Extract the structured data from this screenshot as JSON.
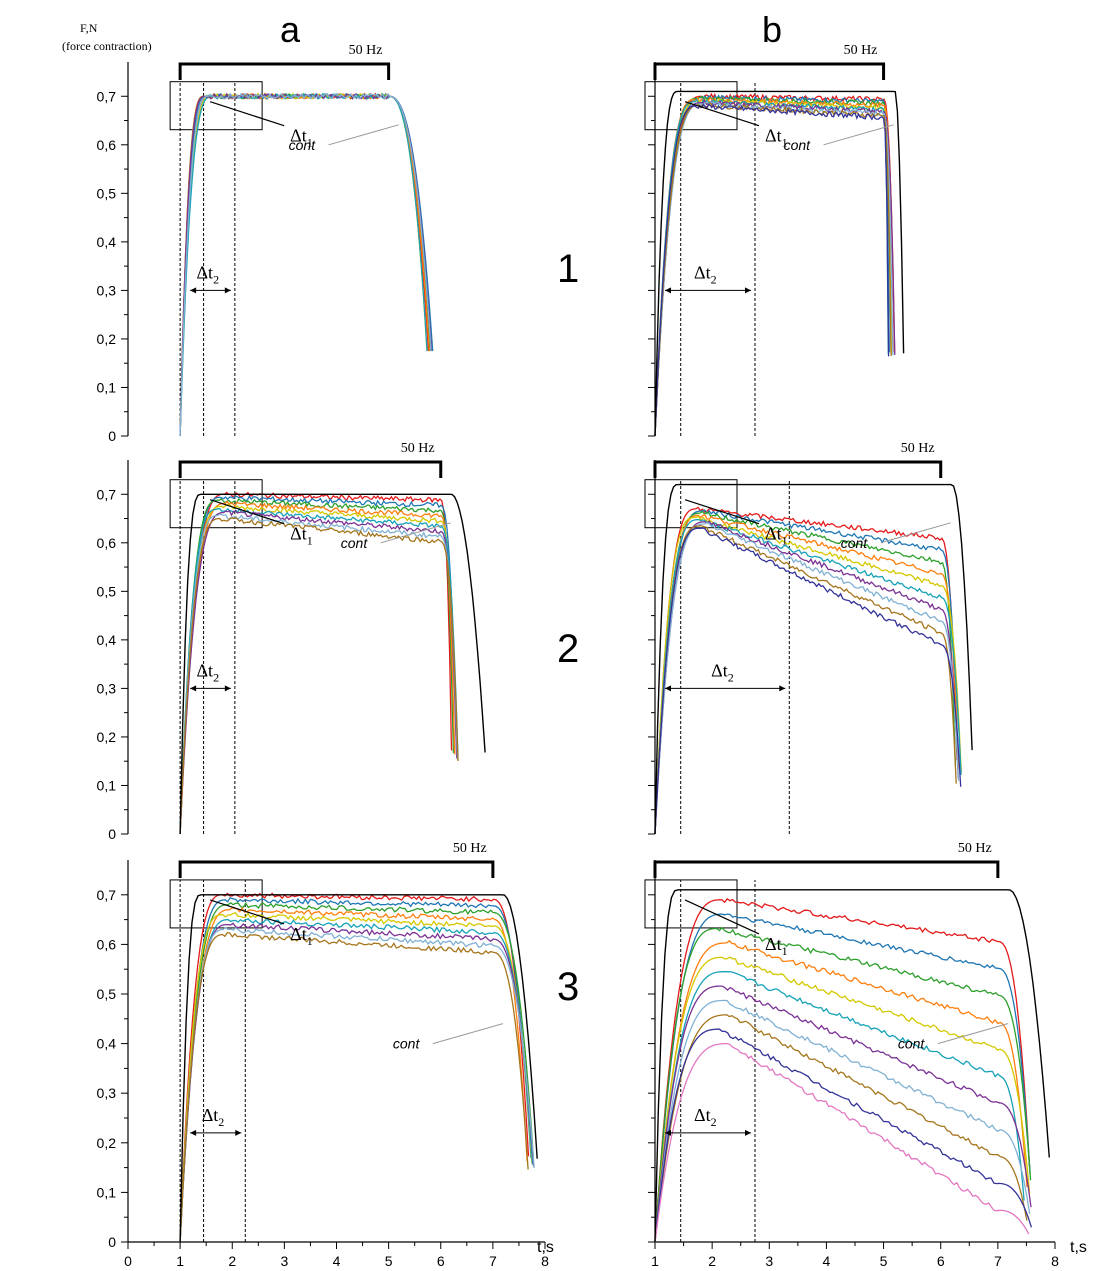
{
  "figure": {
    "column_labels": [
      "a",
      "b"
    ],
    "row_labels": [
      "1",
      "2",
      "3"
    ],
    "y_label_main": "F,N",
    "y_label_sub": "(force contraction)",
    "x_label": "t,s",
    "stim_label": "50 Hz",
    "cont_label": "cont",
    "dt1_label": "Δt",
    "dt1_sub": "1",
    "dt2_label": "Δt",
    "dt2_sub": "2"
  },
  "colors": [
    "#e41a1c",
    "#1f77b4",
    "#2ca02c",
    "#ff7f0e",
    "#d4c800",
    "#17a2b8",
    "#7b3294",
    "#80b1d3",
    "#a6761d",
    "#333399",
    "#e377c2",
    "#000000",
    "#555555"
  ],
  "chart_data": [
    {
      "id": "1a",
      "type": "line",
      "ylim": [
        0,
        0.75
      ],
      "xlim": [
        1,
        6
      ],
      "yticks": [
        "0",
        "0,1",
        "0,2",
        "0,3",
        "0,4",
        "0,5",
        "0,6",
        "0,7"
      ],
      "stim": [
        1,
        5
      ],
      "plateau": 0.7,
      "sat": 0.7,
      "decay": 0,
      "rise_end": 1.55,
      "fall_start": 5.0,
      "fall_end": 5.85,
      "n": 8
    },
    {
      "id": "1b",
      "type": "line",
      "ylim": [
        0,
        0.75
      ],
      "xlim": [
        1,
        5.3
      ],
      "yticks": [],
      "stim": [
        1,
        5
      ],
      "plateau": 0.7,
      "sat": 0.68,
      "decay": 0.02,
      "rise_end": 1.8,
      "fall_start": 5.0,
      "fall_end": 5.2,
      "n": 10,
      "cont": {
        "plateau": 0.71,
        "fall_end": 5.35
      }
    },
    {
      "id": "2a",
      "type": "line",
      "ylim": [
        0,
        0.75
      ],
      "xlim": [
        1,
        7
      ],
      "yticks": [
        "0",
        "0,1",
        "0,2",
        "0,3",
        "0,4",
        "0,5",
        "0,6",
        "0,7"
      ],
      "stim": [
        1,
        6
      ],
      "plateau": 0.7,
      "sat": 0.65,
      "decay": 0.04,
      "rise_end": 1.8,
      "fall_start": 6.0,
      "fall_end": 6.35,
      "n": 9,
      "cont": {
        "plateau": 0.7,
        "fall_end": 6.85
      }
    },
    {
      "id": "2b",
      "type": "line",
      "ylim": [
        0,
        0.75
      ],
      "xlim": [
        1,
        6.5
      ],
      "yticks": [],
      "stim": [
        1,
        6
      ],
      "plateau": 0.67,
      "sat": 0.63,
      "decay": 0.2,
      "rise_end": 1.8,
      "fall_start": 6.0,
      "fall_end": 6.4,
      "n": 10,
      "cont": {
        "plateau": 0.72,
        "fall_end": 6.55
      }
    },
    {
      "id": "3a",
      "type": "line",
      "ylim": [
        0,
        0.75
      ],
      "xlim": [
        0,
        8
      ],
      "xticks": [
        "0",
        "1",
        "2",
        "3",
        "4",
        "5",
        "6",
        "7",
        "8"
      ],
      "yticks": [
        "0",
        "0,1",
        "0,2",
        "0,3",
        "0,4",
        "0,5",
        "0,6",
        "0,7"
      ],
      "stim": [
        1,
        7
      ],
      "plateau": 0.7,
      "sat": 0.62,
      "decay": 0.03,
      "rise_end": 1.9,
      "fall_start": 7.0,
      "fall_end": 7.8,
      "n": 9,
      "cont": {
        "plateau": 0.7,
        "fall_end": 7.85
      }
    },
    {
      "id": "3b",
      "type": "line",
      "ylim": [
        0,
        0.75
      ],
      "xlim": [
        1,
        8
      ],
      "xticks": [
        "1",
        "2",
        "3",
        "4",
        "5",
        "6",
        "7",
        "8"
      ],
      "yticks": [],
      "stim": [
        1,
        7
      ],
      "plateau": 0.69,
      "sat": 0.4,
      "decay": 0.28,
      "rise_end": 2.2,
      "fall_start": 7.0,
      "fall_end": 7.6,
      "n": 11,
      "cont": {
        "plateau": 0.71,
        "fall_end": 7.9
      }
    }
  ]
}
